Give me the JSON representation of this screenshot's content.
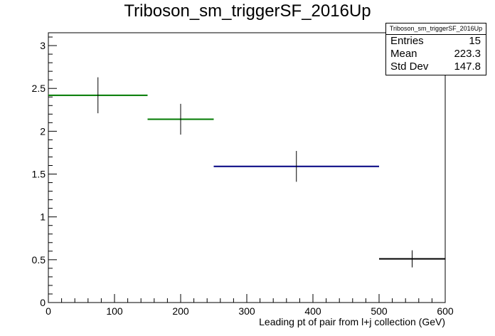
{
  "chart_data": {
    "type": "scatter",
    "title": "Triboson_sm_triggerSF_2016Up",
    "xlabel": "Leading pt of pair from l+j collection (GeV)",
    "ylabel": "",
    "xlim": [
      0,
      600
    ],
    "ylim": [
      0,
      3.15
    ],
    "x_ticks": [
      0,
      100,
      200,
      300,
      400,
      500,
      600
    ],
    "y_ticks": [
      0,
      0.5,
      1,
      1.5,
      2,
      2.5,
      3
    ],
    "grid": false,
    "bins": [
      {
        "xlow": 0,
        "xhigh": 150,
        "x": 75,
        "y": 2.42,
        "yerr": 0.21,
        "color": "#007a00"
      },
      {
        "xlow": 150,
        "xhigh": 250,
        "x": 200,
        "y": 2.14,
        "yerr": 0.18,
        "color": "#007a00"
      },
      {
        "xlow": 250,
        "xhigh": 500,
        "x": 375,
        "y": 1.59,
        "yerr": 0.18,
        "color": "#000080"
      },
      {
        "xlow": 500,
        "xhigh": 600,
        "x": 550,
        "y": 0.51,
        "yerr": 0.1,
        "color": "#000000"
      }
    ]
  },
  "stats": {
    "name": "Triboson_sm_triggerSF_2016Up",
    "entries_label": "Entries",
    "entries": "15",
    "mean_label": "Mean",
    "mean": "223.3",
    "std_label": "Std Dev",
    "std": "147.8"
  }
}
